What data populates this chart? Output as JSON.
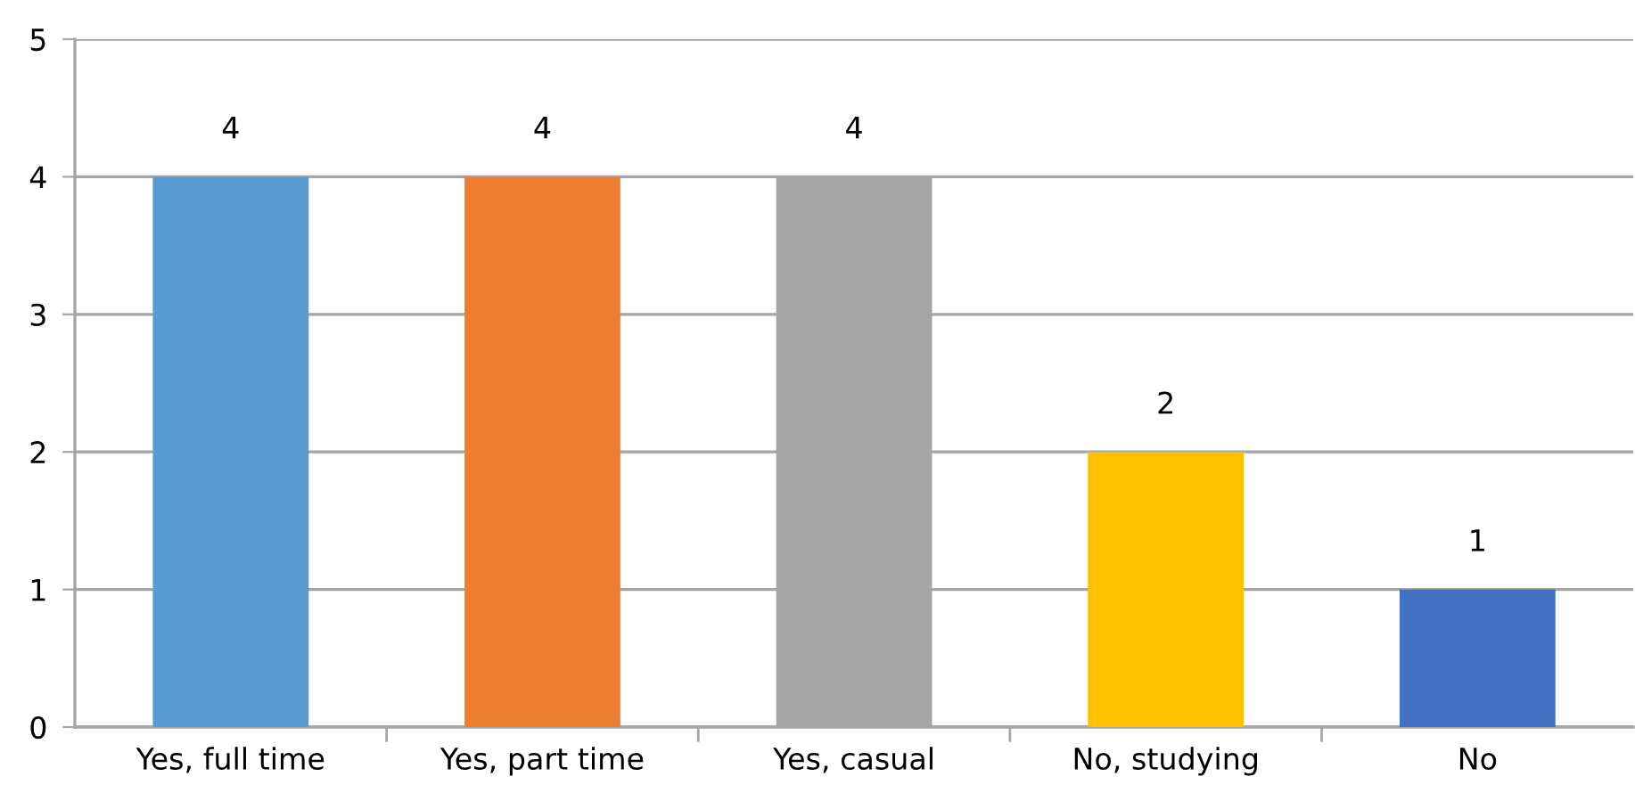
{
  "chart_data": {
    "type": "bar",
    "categories": [
      "Yes, full time",
      "Yes, part time",
      "Yes, casual",
      "No, studying",
      "No"
    ],
    "values": [
      4,
      4,
      4,
      2,
      1
    ],
    "colors": [
      "#5b9bd5",
      "#ed7d31",
      "#a5a5a5",
      "#ffc000",
      "#4472c4"
    ],
    "ylim": [
      0,
      5
    ],
    "yticks": [
      0,
      1,
      2,
      3,
      4,
      5
    ],
    "grid": "y",
    "data_labels": true
  }
}
